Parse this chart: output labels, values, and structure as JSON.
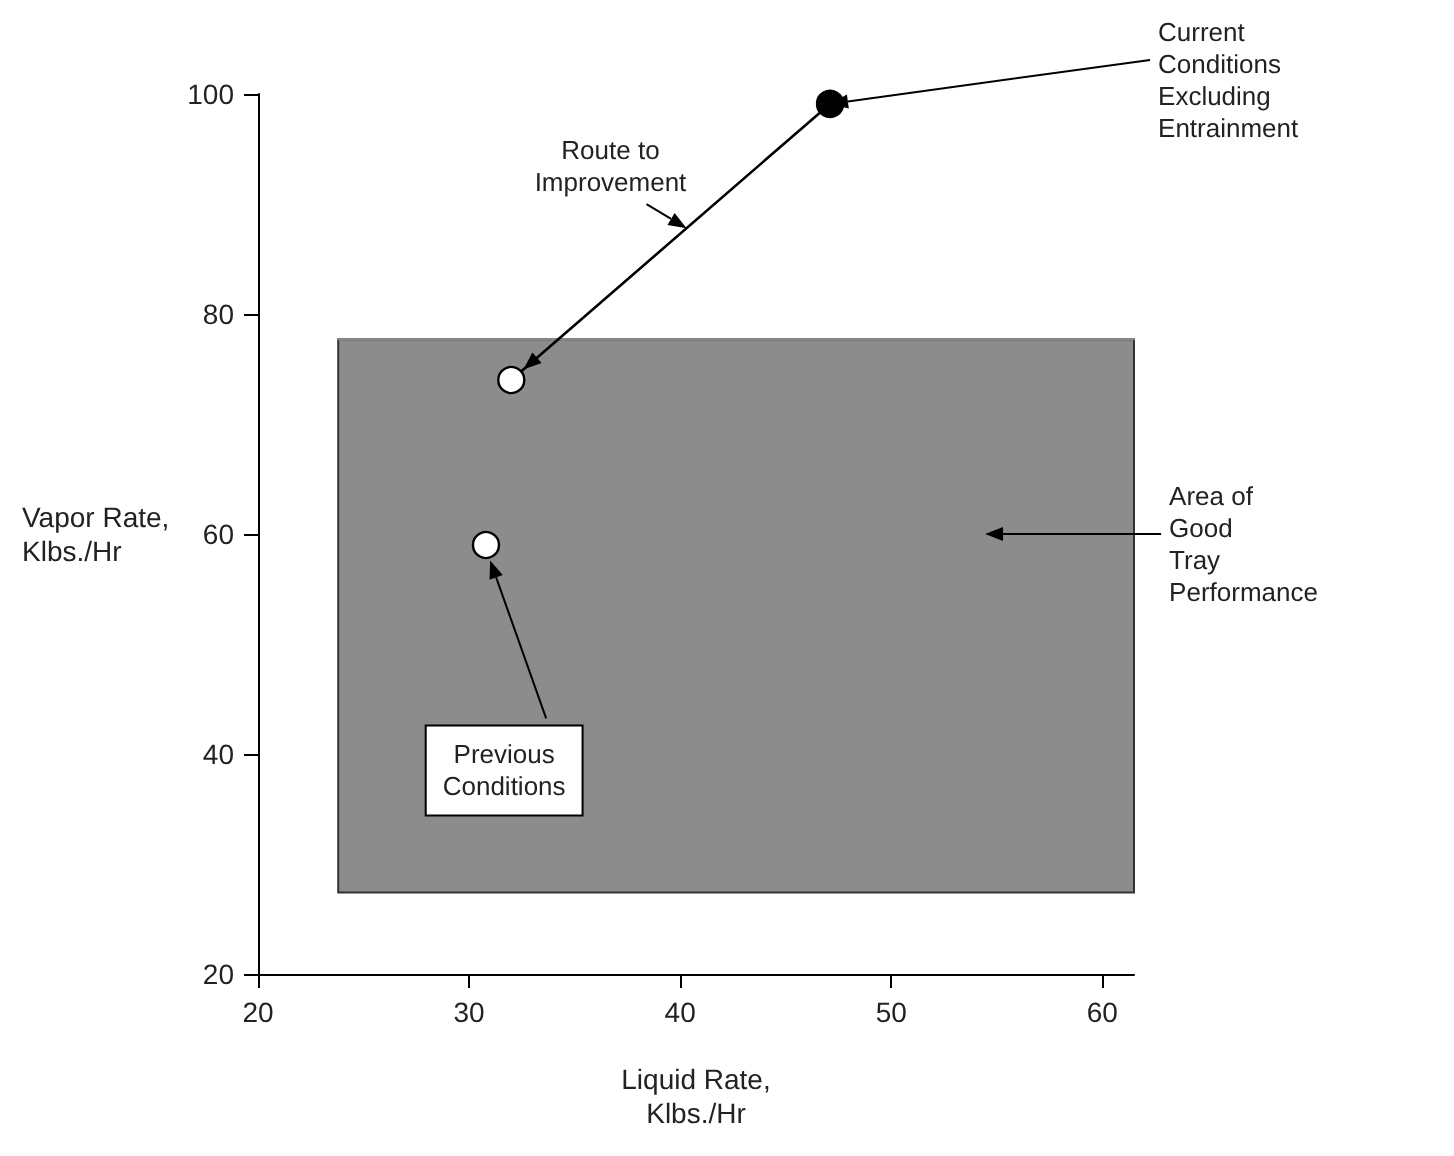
{
  "chart_data": {
    "type": "scatter",
    "xlabel": "Liquid Rate,\nKlbs./Hr",
    "ylabel": "Vapor Rate,\nKlbs./Hr",
    "xlim": [
      20,
      61.5
    ],
    "xticks": [
      20,
      30,
      40,
      50,
      60
    ],
    "ylim": [
      20,
      100
    ],
    "yticks": [
      20,
      40,
      60,
      80,
      100
    ],
    "grid": false,
    "series": [
      {
        "type": "line",
        "x": [
          23.8,
          61.5
        ],
        "values": [
          77.7,
          77.7
        ],
        "lower": [
          27.4,
          27.4
        ],
        "upper": [
          77.7,
          77.7
        ],
        "color": "#8c8c8c",
        "marker": "none"
      },
      {
        "type": "line",
        "x": [
          47.1,
          32
        ],
        "values": [
          99.1,
          74.0
        ],
        "color": "#000000",
        "line_style": "solid",
        "marker": "none"
      },
      {
        "type": "scatter",
        "x": [
          47.1,
          32,
          30.8
        ],
        "values": [
          99.1,
          74.0,
          59.0
        ],
        "colors": [
          "#000000",
          "#ffffff",
          "#ffffff"
        ],
        "marker": "circle"
      }
    ],
    "annotations": [
      {
        "text": "Current\nConditions\nExcluding\nEntrainment",
        "x": 47.1,
        "y": 99.1
      },
      {
        "text": "Route to\nImprovement",
        "x": 40.3,
        "y": 87.8
      },
      "Area of\nGood\nTray\nPerformance",
      "Previous\nConditions"
    ]
  }
}
